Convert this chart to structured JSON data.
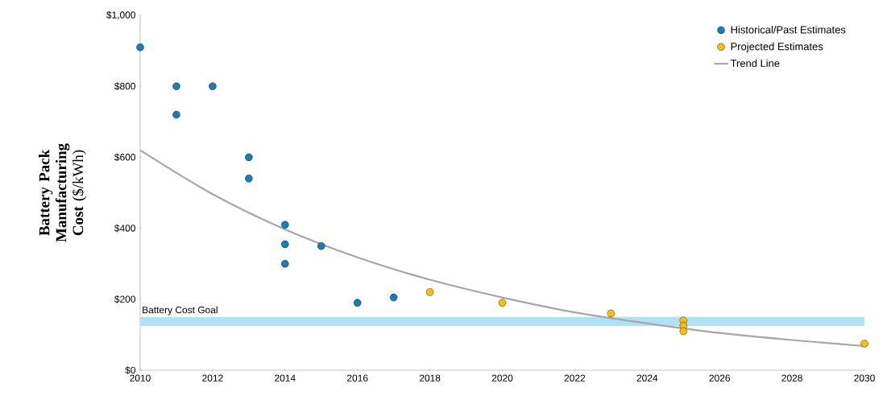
{
  "chart_data": {
    "type": "scatter",
    "ylabel": "**Battery Pack Manufacturing Cost** ($/kWh)",
    "xlim": [
      2010,
      2030
    ],
    "xticks": [
      2010,
      2012,
      2014,
      2016,
      2018,
      2020,
      2022,
      2024,
      2026,
      2028,
      2030
    ],
    "ylim": [
      0,
      1000
    ],
    "yticks": [
      {
        "value": 0,
        "label": "$0"
      },
      {
        "value": 200,
        "label": "$200"
      },
      {
        "value": 400,
        "label": "$400"
      },
      {
        "value": 600,
        "label": "$600"
      },
      {
        "value": 800,
        "label": "$800"
      },
      {
        "value": 1000,
        "label": "$1,000"
      }
    ],
    "series": [
      {
        "name": "Historical/Past Estimates",
        "color": "#1a7db5",
        "x": [
          2010,
          2011,
          2011,
          2012,
          2013,
          2013,
          2014,
          2014,
          2014,
          2015,
          2016,
          2017
        ],
        "values": [
          910,
          800,
          720,
          800,
          600,
          540,
          410,
          355,
          300,
          350,
          190,
          205
        ]
      },
      {
        "name": "Projected Estimates",
        "color": "#fbbd13",
        "x": [
          2018,
          2020,
          2023,
          2025,
          2025,
          2025,
          2030
        ],
        "values": [
          220,
          190,
          160,
          140,
          125,
          110,
          75
        ]
      },
      {
        "name": "Trend Line",
        "type": "line",
        "marker": "none",
        "color": "#a6a6a6",
        "x": [
          2010,
          2012,
          2014,
          2016,
          2018,
          2020,
          2022,
          2024,
          2026,
          2028,
          2030
        ],
        "values": [
          620,
          496,
          397,
          318,
          255,
          205,
          163,
          132,
          105,
          85,
          68
        ]
      }
    ],
    "bands": [
      {
        "axis": "y",
        "from": 125,
        "to": 150,
        "label": "Battery Cost Goal",
        "color": "#b0e2f7"
      }
    ],
    "marker": "circle",
    "legend": "top right",
    "grid": false
  }
}
